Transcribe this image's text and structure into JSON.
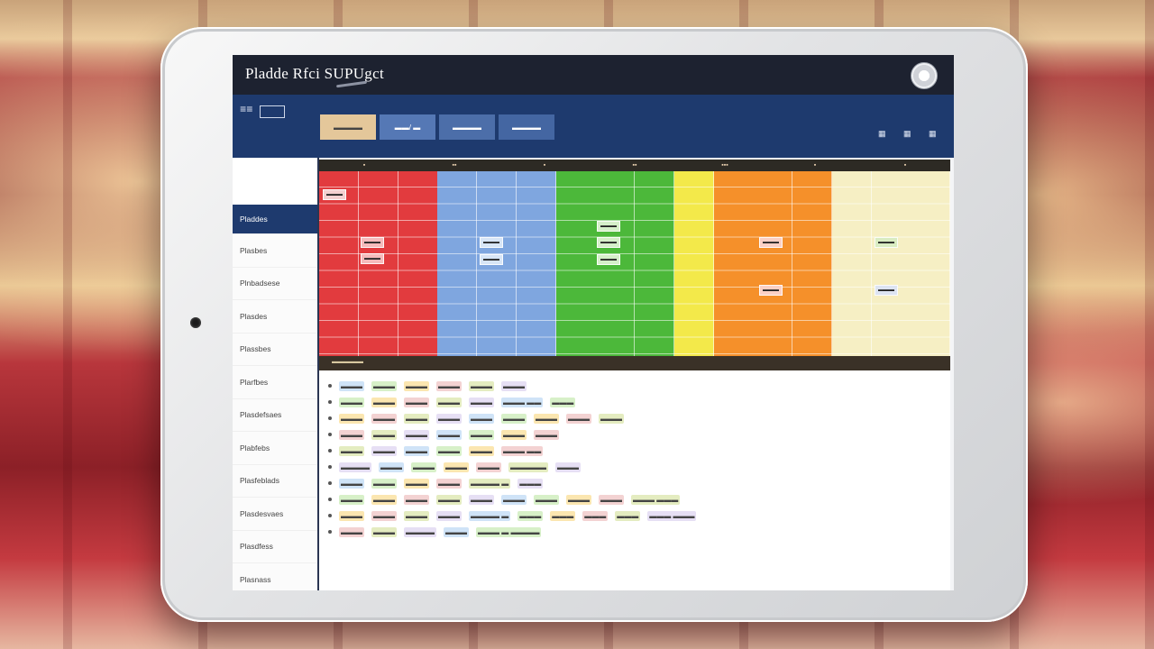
{
  "app": {
    "title": "Pladde Rfci SUPUgct"
  },
  "menu": {
    "label": "≡≡"
  },
  "tabs": [
    {
      "label": "▬▬▬▬"
    },
    {
      "label": "▬▬/ ▬"
    },
    {
      "label": "▬▬▬▬"
    },
    {
      "label": "▬▬▬▬"
    }
  ],
  "tools": [
    "▦",
    "▦",
    "▦"
  ],
  "sidebar": {
    "items": [
      {
        "label": "Pladdes",
        "active": true
      },
      {
        "label": "Plasbes"
      },
      {
        "label": "Plnbadsese"
      },
      {
        "label": "Plasdes"
      },
      {
        "label": "Plassbes"
      },
      {
        "label": "Plarfbes"
      },
      {
        "label": "Plasdefsaes"
      },
      {
        "label": "Plabfebs"
      },
      {
        "label": "Plasfeblads"
      },
      {
        "label": "Plasdesvaes"
      },
      {
        "label": "Plasdfess"
      },
      {
        "label": "Plasnass"
      }
    ]
  },
  "grid": {
    "headers": [
      "▪",
      "▪▪",
      "▪",
      "▪▪",
      "▪▪▪",
      "▪",
      "▪"
    ],
    "colors": [
      "#e23b3e",
      "#e23b3e",
      "#e23b3e",
      "#7fa6df",
      "#7fa6df",
      "#7fa6df",
      "#4cb83a",
      "#4cb83a",
      "#4cb83a",
      "#f3e94a",
      "#f5902a",
      "#f5902a",
      "#f5902a",
      "#f6efc4",
      "#f6efc4",
      "#f6efc4"
    ],
    "footer_label": "▬▬▬▬▬"
  },
  "list": {
    "rows": [
      [
        "▬▬▬",
        "▬▬▬",
        "▬▬▬",
        "▬▬▬",
        "▬▬▬",
        "▬▬▬"
      ],
      [
        "▬▬▬",
        "▬▬▬",
        "▬▬▬",
        "▬▬▬",
        "▬▬▬",
        "▬▬▬ ▬▬",
        "▬▬▬"
      ],
      [
        "▬▬▬",
        "▬▬▬",
        "▬▬▬",
        "▬▬▬",
        "▬▬▬",
        "▬▬▬",
        "▬▬▬",
        "▬▬▬",
        "▬▬▬"
      ],
      [
        "▬▬▬",
        "▬▬▬",
        "▬▬▬",
        "▬▬▬",
        "▬▬▬",
        "▬▬▬",
        "▬▬▬"
      ],
      [
        "▬▬▬",
        "▬▬▬",
        "▬▬▬",
        "▬▬▬",
        "▬▬▬",
        "▬▬▬ ▬▬"
      ],
      [
        "▬▬▬▬",
        "▬▬▬",
        "▬▬▬",
        "▬▬▬",
        "▬▬▬",
        "▬▬▬▬▬",
        "▬▬▬"
      ],
      [
        "▬▬▬",
        "▬▬▬",
        "▬▬▬",
        "▬▬▬",
        "▬▬▬▬ ▬",
        "▬▬▬"
      ],
      [
        "▬▬▬",
        "▬▬▬",
        "▬▬▬",
        "▬▬▬",
        "▬▬▬",
        "▬▬▬",
        "▬▬▬",
        "▬▬▬",
        "▬▬▬",
        "▬▬▬ ▬▬▬"
      ],
      [
        "▬▬▬",
        "▬▬▬",
        "▬▬▬",
        "▬▬▬",
        "▬▬▬▬ ▬",
        "▬▬▬",
        "▬▬▬",
        "▬▬▬",
        "▬▬▬",
        "▬▬▬ ▬▬▬"
      ],
      [
        "▬▬▬",
        "▬▬▬",
        "▬▬▬▬",
        "▬▬▬",
        "▬▬▬ ▬ ▬▬▬▬"
      ]
    ],
    "tag_colors": [
      "#cfe3f7",
      "#d7f0c8",
      "#fbe6b0",
      "#f3d2d2",
      "#e4ecc0",
      "#e6dff4"
    ]
  }
}
